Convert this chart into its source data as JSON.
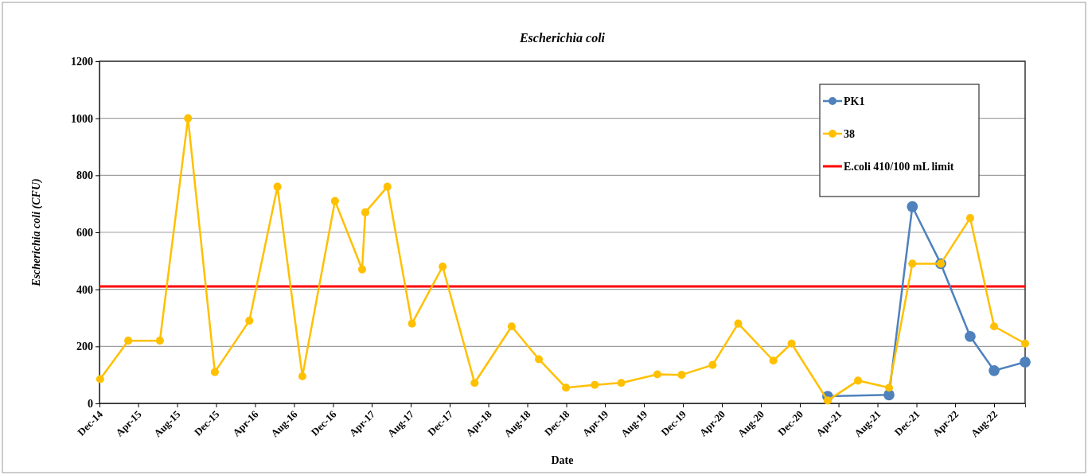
{
  "chart_data": {
    "type": "line",
    "title": "Escherichia coli",
    "xlabel": "Date",
    "ylabel": "Escherichia coli (CFU)",
    "xlim": [
      "2014-12-01",
      "2022-11-06"
    ],
    "xticks": [
      {
        "value": "2014-12",
        "label": "Dec-14"
      },
      {
        "value": "2015-04",
        "label": "Apr-15"
      },
      {
        "value": "2015-08",
        "label": "Aug-15"
      },
      {
        "value": "2015-12",
        "label": "Dec-15"
      },
      {
        "value": "2016-04",
        "label": "Apr-16"
      },
      {
        "value": "2016-08",
        "label": "Aug-16"
      },
      {
        "value": "2016-12",
        "label": "Dec-16"
      },
      {
        "value": "2017-04",
        "label": "Apr-17"
      },
      {
        "value": "2017-08",
        "label": "Aug-17"
      },
      {
        "value": "2017-12",
        "label": "Dec-17"
      },
      {
        "value": "2018-04",
        "label": "Apr-18"
      },
      {
        "value": "2018-08",
        "label": "Aug-18"
      },
      {
        "value": "2018-12",
        "label": "Dec-18"
      },
      {
        "value": "2019-04",
        "label": "Apr-19"
      },
      {
        "value": "2019-08",
        "label": "Aug-19"
      },
      {
        "value": "2019-12",
        "label": "Dec-19"
      },
      {
        "value": "2020-04",
        "label": "Apr-20"
      },
      {
        "value": "2020-08",
        "label": "Aug-20"
      },
      {
        "value": "2020-12",
        "label": "Dec-20"
      },
      {
        "value": "2021-04",
        "label": "Apr-21"
      },
      {
        "value": "2021-08",
        "label": "Aug-21"
      },
      {
        "value": "2021-12",
        "label": "Dec-21"
      },
      {
        "value": "2022-04",
        "label": "Apr-22"
      },
      {
        "value": "2022-08",
        "label": "Aug-22"
      }
    ],
    "ylim": [
      0,
      1200
    ],
    "yticks": [
      0,
      200,
      400,
      600,
      800,
      1000,
      1200
    ],
    "grid": "y",
    "legend": "top right",
    "marker": "circle",
    "line_style": "solid",
    "series": [
      {
        "name": "PK1",
        "color": "#4f81bd",
        "x": [
          "2021-02-26",
          "2021-09-06",
          "2021-11-18",
          "2022-02-15",
          "2022-05-18",
          "2022-08-01",
          "2022-11-06"
        ],
        "values": [
          25,
          30,
          690,
          490,
          235,
          115,
          145
        ]
      },
      {
        "name": "38",
        "color": "#ffc000",
        "x": [
          "2014-12-03",
          "2015-03-01",
          "2015-06-08",
          "2015-09-04",
          "2015-11-27",
          "2016-03-14",
          "2016-06-10",
          "2016-08-27",
          "2016-12-07",
          "2017-03-02",
          "2017-03-12",
          "2017-05-20",
          "2017-08-05",
          "2017-11-09",
          "2018-02-17",
          "2018-06-13",
          "2018-09-06",
          "2018-11-30",
          "2019-02-28",
          "2019-05-22",
          "2019-09-12",
          "2019-11-27",
          "2020-03-03",
          "2020-05-22",
          "2020-09-09",
          "2020-11-05",
          "2021-02-26",
          "2021-06-01",
          "2021-09-06",
          "2021-11-18",
          "2022-02-15",
          "2022-05-18",
          "2022-08-01",
          "2022-11-06"
        ],
        "values": [
          85,
          220,
          220,
          1000,
          110,
          290,
          760,
          95,
          710,
          470,
          670,
          760,
          280,
          480,
          72,
          270,
          155,
          55,
          65,
          72,
          102,
          100,
          135,
          280,
          150,
          210,
          10,
          80,
          55,
          490,
          490,
          650,
          270,
          210
        ]
      }
    ],
    "ref_lines": [
      {
        "axis": "y",
        "value": 410,
        "label": "E.coli 410/100 mL limit",
        "color": "#ff0000",
        "line_style": "solid"
      }
    ]
  }
}
